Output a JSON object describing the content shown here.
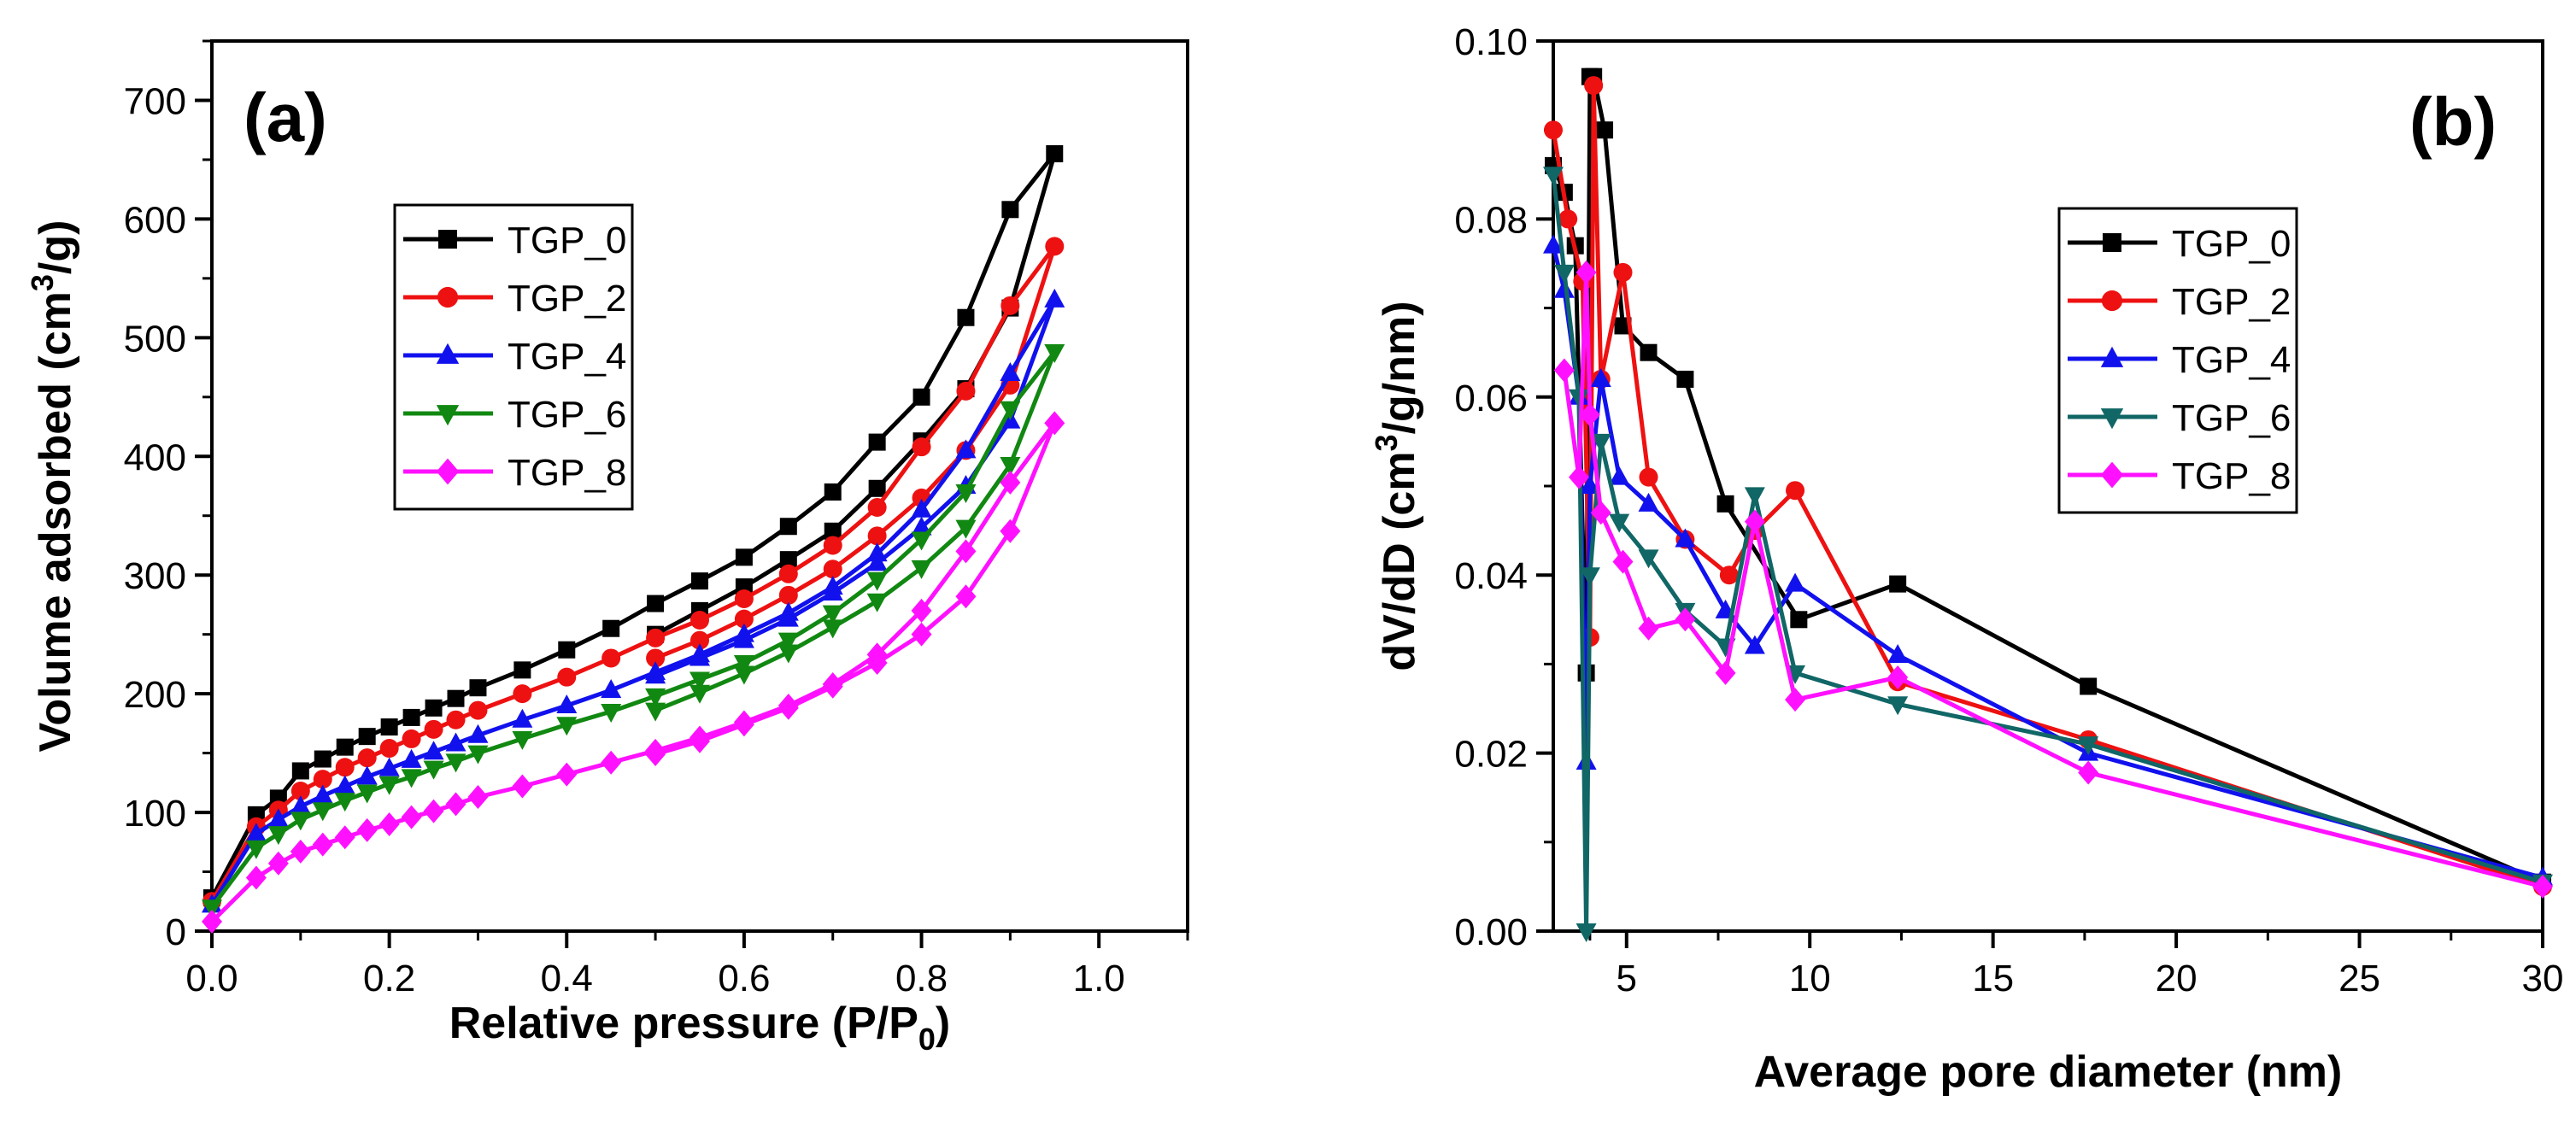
{
  "chart_data": [
    {
      "type": "line",
      "panel_label": "(a)",
      "xlabel": "Relative pressure (P/P",
      "xlabel_sub": "0",
      "xlabel_tail": ")",
      "ylabel": "Volume adsorbed (cm",
      "ylabel_sup": "3",
      "ylabel_tail": "/g)",
      "xlim": [
        0.0,
        1.1
      ],
      "ylim": [
        0,
        750
      ],
      "xticks": [
        "0.0",
        "0.2",
        "0.4",
        "0.6",
        "0.8",
        "1.0"
      ],
      "yticks": [
        "0",
        "100",
        "200",
        "300",
        "400",
        "500",
        "600",
        "700"
      ],
      "legend_position": "upper-left",
      "series": [
        {
          "name": "TGP_0",
          "color": "#000000",
          "marker": "square",
          "x": [
            0.0,
            0.05,
            0.075,
            0.1,
            0.125,
            0.15,
            0.175,
            0.2,
            0.225,
            0.25,
            0.275,
            0.3,
            0.35,
            0.4,
            0.45,
            0.5,
            0.55,
            0.6,
            0.65,
            0.7,
            0.75,
            0.8,
            0.85,
            0.9,
            0.95,
            0.9,
            0.85,
            0.8,
            0.75,
            0.7,
            0.65,
            0.6,
            0.55,
            0.5
          ],
          "y": [
            28,
            98,
            112,
            135,
            145,
            155,
            164,
            172,
            180,
            188,
            196,
            205,
            220,
            237,
            255,
            276,
            295,
            315,
            341,
            370,
            412,
            450,
            517,
            608,
            655,
            525,
            457,
            413,
            373,
            337,
            313,
            290,
            270,
            250
          ]
        },
        {
          "name": "TGP_2",
          "color": "#ee1111",
          "marker": "circle",
          "x": [
            0.0,
            0.05,
            0.075,
            0.1,
            0.125,
            0.15,
            0.175,
            0.2,
            0.225,
            0.25,
            0.275,
            0.3,
            0.35,
            0.4,
            0.45,
            0.5,
            0.55,
            0.6,
            0.65,
            0.7,
            0.75,
            0.8,
            0.85,
            0.9,
            0.95,
            0.9,
            0.85,
            0.8,
            0.75,
            0.7,
            0.65,
            0.6,
            0.55,
            0.5
          ],
          "y": [
            25,
            88,
            102,
            118,
            128,
            138,
            146,
            154,
            162,
            170,
            178,
            186,
            200,
            214,
            230,
            247,
            262,
            280,
            301,
            325,
            357,
            408,
            455,
            527,
            577,
            460,
            405,
            365,
            333,
            305,
            283,
            263,
            245,
            230
          ]
        },
        {
          "name": "TGP_4",
          "color": "#1111ee",
          "marker": "triangle-up",
          "x": [
            0.0,
            0.05,
            0.075,
            0.1,
            0.125,
            0.15,
            0.175,
            0.2,
            0.225,
            0.25,
            0.275,
            0.3,
            0.35,
            0.4,
            0.45,
            0.5,
            0.55,
            0.6,
            0.65,
            0.7,
            0.75,
            0.8,
            0.85,
            0.9,
            0.95,
            0.9,
            0.85,
            0.8,
            0.75,
            0.7,
            0.65,
            0.6,
            0.55,
            0.5
          ],
          "y": [
            22,
            82,
            94,
            105,
            114,
            122,
            130,
            137,
            144,
            151,
            158,
            165,
            178,
            190,
            203,
            218,
            233,
            250,
            268,
            290,
            318,
            355,
            405,
            470,
            532,
            430,
            375,
            340,
            310,
            285,
            263,
            245,
            230,
            215
          ]
        },
        {
          "name": "TGP_6",
          "color": "#118811",
          "marker": "triangle-down",
          "x": [
            0.0,
            0.05,
            0.075,
            0.1,
            0.125,
            0.15,
            0.175,
            0.2,
            0.225,
            0.25,
            0.275,
            0.3,
            0.35,
            0.4,
            0.45,
            0.5,
            0.55,
            0.6,
            0.65,
            0.7,
            0.75,
            0.8,
            0.85,
            0.9,
            0.95,
            0.9,
            0.85,
            0.8,
            0.75,
            0.7,
            0.65,
            0.6,
            0.55,
            0.5
          ],
          "y": [
            20,
            70,
            82,
            94,
            102,
            110,
            117,
            124,
            130,
            137,
            143,
            150,
            162,
            174,
            185,
            198,
            212,
            226,
            245,
            268,
            296,
            330,
            370,
            440,
            488,
            393,
            340,
            306,
            278,
            256,
            235,
            217,
            201,
            186
          ]
        },
        {
          "name": "TGP_8",
          "color": "#ff11ff",
          "marker": "diamond",
          "x": [
            0.0,
            0.05,
            0.075,
            0.1,
            0.125,
            0.15,
            0.175,
            0.2,
            0.225,
            0.25,
            0.275,
            0.3,
            0.35,
            0.4,
            0.45,
            0.5,
            0.55,
            0.6,
            0.65,
            0.7,
            0.75,
            0.8,
            0.85,
            0.9,
            0.95,
            0.9,
            0.85,
            0.8,
            0.75,
            0.7,
            0.65,
            0.6,
            0.55,
            0.5
          ],
          "y": [
            8,
            45,
            57,
            67,
            73,
            79,
            85,
            90,
            96,
            101,
            107,
            113,
            122,
            132,
            142,
            152,
            163,
            176,
            190,
            208,
            233,
            270,
            320,
            378,
            428,
            337,
            282,
            250,
            226,
            206,
            188,
            174,
            160,
            149
          ]
        }
      ]
    },
    {
      "type": "line",
      "panel_label": "(b)",
      "xlabel": "Average pore diameter (nm)",
      "ylabel": "dV/dD (cm",
      "ylabel_sup": "3",
      "ylabel_tail": "/g/nm)",
      "xlim": [
        3,
        30
      ],
      "ylim": [
        0.0,
        0.1
      ],
      "xticks": [
        "5",
        "10",
        "15",
        "20",
        "25",
        "30"
      ],
      "xtick_values": [
        5,
        10,
        15,
        20,
        25,
        30
      ],
      "yticks": [
        "0.00",
        "0.02",
        "0.04",
        "0.06",
        "0.08",
        "0.10"
      ],
      "legend_position": "upper-right",
      "series": [
        {
          "name": "TGP_0",
          "color": "#000000",
          "marker": "square",
          "x": [
            3.0,
            3.3,
            3.6,
            3.9,
            4.0,
            4.1,
            4.4,
            4.9,
            5.6,
            6.6,
            7.7,
            9.7,
            12.4,
            17.6,
            30.0
          ],
          "y": [
            0.086,
            0.083,
            0.077,
            0.029,
            0.096,
            0.096,
            0.09,
            0.068,
            0.065,
            0.062,
            0.048,
            0.035,
            0.039,
            0.0275,
            0.0055
          ]
        },
        {
          "name": "TGP_2",
          "color": "#ee1111",
          "marker": "circle",
          "x": [
            3.0,
            3.4,
            3.8,
            4.0,
            4.1,
            4.3,
            4.9,
            5.6,
            6.6,
            7.8,
            8.5,
            9.6,
            12.4,
            17.6,
            30.0
          ],
          "y": [
            0.09,
            0.08,
            0.073,
            0.033,
            0.095,
            0.062,
            0.074,
            0.051,
            0.044,
            0.04,
            0.045,
            0.0495,
            0.028,
            0.0215,
            0.005
          ]
        },
        {
          "name": "TGP_4",
          "color": "#1111ee",
          "marker": "triangle-up",
          "x": [
            3.0,
            3.3,
            3.7,
            3.9,
            4.0,
            4.3,
            4.8,
            5.6,
            6.6,
            7.7,
            8.5,
            9.6,
            12.4,
            17.6,
            30.0
          ],
          "y": [
            0.077,
            0.072,
            0.06,
            0.019,
            0.05,
            0.062,
            0.051,
            0.048,
            0.044,
            0.036,
            0.032,
            0.039,
            0.031,
            0.02,
            0.006
          ]
        },
        {
          "name": "TGP_6",
          "color": "#116666",
          "marker": "triangle-down",
          "x": [
            3.0,
            3.3,
            3.7,
            3.9,
            4.0,
            4.3,
            4.8,
            5.6,
            6.6,
            7.7,
            8.5,
            9.6,
            12.4,
            17.6,
            30.0
          ],
          "y": [
            0.085,
            0.074,
            0.06,
            0.0,
            0.04,
            0.055,
            0.046,
            0.042,
            0.036,
            0.032,
            0.049,
            0.029,
            0.0255,
            0.021,
            0.0055
          ]
        },
        {
          "name": "TGP_8",
          "color": "#ff11ff",
          "marker": "diamond",
          "x": [
            3.3,
            3.7,
            3.9,
            4.0,
            4.3,
            4.9,
            5.6,
            6.6,
            7.7,
            8.5,
            9.6,
            12.4,
            17.6,
            30.0
          ],
          "y": [
            0.063,
            0.051,
            0.074,
            0.058,
            0.047,
            0.0415,
            0.034,
            0.035,
            0.029,
            0.046,
            0.026,
            0.0285,
            0.0178,
            0.005
          ]
        }
      ]
    }
  ]
}
